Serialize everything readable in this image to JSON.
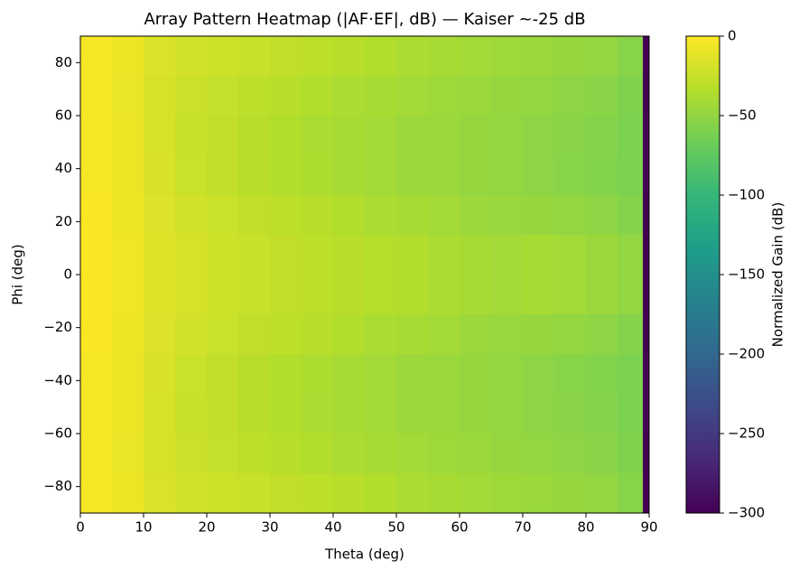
{
  "chart_data": {
    "type": "heatmap",
    "title": "Array Pattern Heatmap (|AF·EF|, dB) — Kaiser ~-25 dB",
    "xlabel": "Theta (deg)",
    "ylabel": "Phi (deg)",
    "colorbar_label": "Normalized Gain (dB)",
    "colormap": "viridis",
    "x_edges": [
      0,
      5,
      10,
      15,
      20,
      25,
      30,
      35,
      40,
      45,
      50,
      55,
      60,
      65,
      70,
      75,
      80,
      85,
      89,
      90
    ],
    "y_edges": [
      90,
      75,
      60,
      45,
      30,
      15,
      0,
      -15,
      -30,
      -45,
      -60,
      -75,
      -90
    ],
    "z": [
      [
        -3,
        -8,
        -16,
        -20,
        -22,
        -25,
        -28,
        -30,
        -33,
        -35,
        -38,
        -40,
        -42,
        -44,
        -46,
        -48,
        -50,
        -55,
        -300
      ],
      [
        -3,
        -9,
        -18,
        -23,
        -26,
        -30,
        -33,
        -35,
        -38,
        -40,
        -42,
        -44,
        -46,
        -48,
        -50,
        -52,
        -54,
        -58,
        -300
      ],
      [
        -3,
        -8,
        -18,
        -25,
        -28,
        -32,
        -35,
        -38,
        -40,
        -42,
        -45,
        -46,
        -48,
        -50,
        -52,
        -54,
        -56,
        -60,
        -300
      ],
      [
        -3,
        -8,
        -17,
        -24,
        -28,
        -32,
        -35,
        -37,
        -40,
        -42,
        -45,
        -46,
        -48,
        -50,
        -52,
        -55,
        -57,
        -60,
        -300
      ],
      [
        -2,
        -7,
        -15,
        -20,
        -24,
        -28,
        -30,
        -33,
        -35,
        -38,
        -40,
        -42,
        -45,
        -47,
        -48,
        -50,
        -52,
        -56,
        -300
      ],
      [
        -2,
        -6,
        -14,
        -18,
        -22,
        -25,
        -28,
        -30,
        -32,
        -34,
        -35,
        -38,
        -40,
        -42,
        -40,
        -42,
        -45,
        -50,
        -300
      ],
      [
        -2,
        -6,
        -14,
        -18,
        -22,
        -25,
        -28,
        -30,
        -32,
        -34,
        -35,
        -38,
        -40,
        -42,
        -40,
        -42,
        -45,
        -50,
        -300
      ],
      [
        -2,
        -7,
        -15,
        -20,
        -24,
        -28,
        -30,
        -33,
        -35,
        -38,
        -40,
        -42,
        -45,
        -47,
        -48,
        -50,
        -52,
        -56,
        -300
      ],
      [
        -3,
        -8,
        -17,
        -24,
        -28,
        -32,
        -35,
        -37,
        -40,
        -42,
        -45,
        -46,
        -48,
        -50,
        -52,
        -55,
        -57,
        -60,
        -300
      ],
      [
        -3,
        -8,
        -18,
        -25,
        -28,
        -32,
        -35,
        -38,
        -40,
        -42,
        -45,
        -46,
        -48,
        -50,
        -52,
        -54,
        -56,
        -60,
        -300
      ],
      [
        -3,
        -9,
        -18,
        -23,
        -26,
        -30,
        -33,
        -35,
        -38,
        -40,
        -42,
        -44,
        -46,
        -48,
        -50,
        -52,
        -54,
        -58,
        -300
      ],
      [
        -3,
        -8,
        -16,
        -20,
        -22,
        -25,
        -28,
        -30,
        -33,
        -35,
        -38,
        -40,
        -42,
        -44,
        -46,
        -48,
        -50,
        -55,
        -300
      ]
    ],
    "xlim": [
      0,
      90
    ],
    "ylim": [
      -90,
      90
    ],
    "clim": [
      -300,
      0
    ],
    "xticks": [
      0,
      10,
      20,
      30,
      40,
      50,
      60,
      70,
      80,
      90
    ],
    "yticks": [
      {
        "value": -80,
        "label": "−80"
      },
      {
        "value": -60,
        "label": "−60"
      },
      {
        "value": -40,
        "label": "−40"
      },
      {
        "value": -20,
        "label": "−20"
      },
      0,
      20,
      40,
      60,
      80
    ],
    "cticks": [
      0,
      {
        "value": -50,
        "label": "−50"
      },
      {
        "value": -100,
        "label": "−100"
      },
      {
        "value": -150,
        "label": "−150"
      },
      {
        "value": -200,
        "label": "−200"
      },
      {
        "value": -250,
        "label": "−250"
      },
      {
        "value": -300,
        "label": "−300"
      }
    ]
  }
}
